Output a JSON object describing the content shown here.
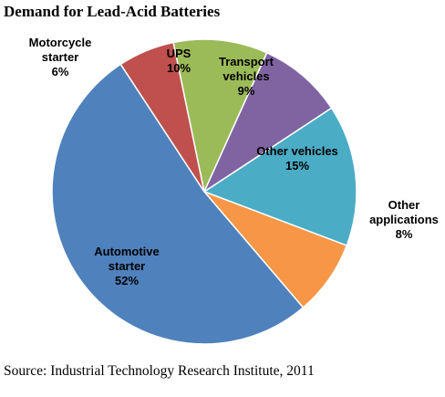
{
  "chart_data": {
    "type": "pie",
    "title": "Demand for Lead-Acid Batteries",
    "source": "Source: Industrial Technology Research Institute, 2011",
    "legend": "none",
    "slices": [
      {
        "name": "Other vehicles",
        "value": 15,
        "value_label": "15%",
        "label_lines": [
          "Other vehicles"
        ],
        "color": "#4BACC6"
      },
      {
        "name": "Other applications",
        "value": 8,
        "value_label": "8%",
        "label_lines": [
          "Other",
          "applications"
        ],
        "color": "#F79646"
      },
      {
        "name": "Automotive starter",
        "value": 52,
        "value_label": "52%",
        "label_lines": [
          "Automotive",
          "starter"
        ],
        "color": "#4F81BD"
      },
      {
        "name": "Motorcycle starter",
        "value": 6,
        "value_label": "6%",
        "label_lines": [
          "Motorcycle",
          "starter"
        ],
        "color": "#C0504D"
      },
      {
        "name": "UPS",
        "value": 10,
        "value_label": "10%",
        "label_lines": [
          "UPS"
        ],
        "color": "#9BBB59"
      },
      {
        "name": "Transport vehicles",
        "value": 9,
        "value_label": "9%",
        "label_lines": [
          "Transport",
          "vehicles"
        ],
        "color": "#8064A2"
      }
    ]
  }
}
